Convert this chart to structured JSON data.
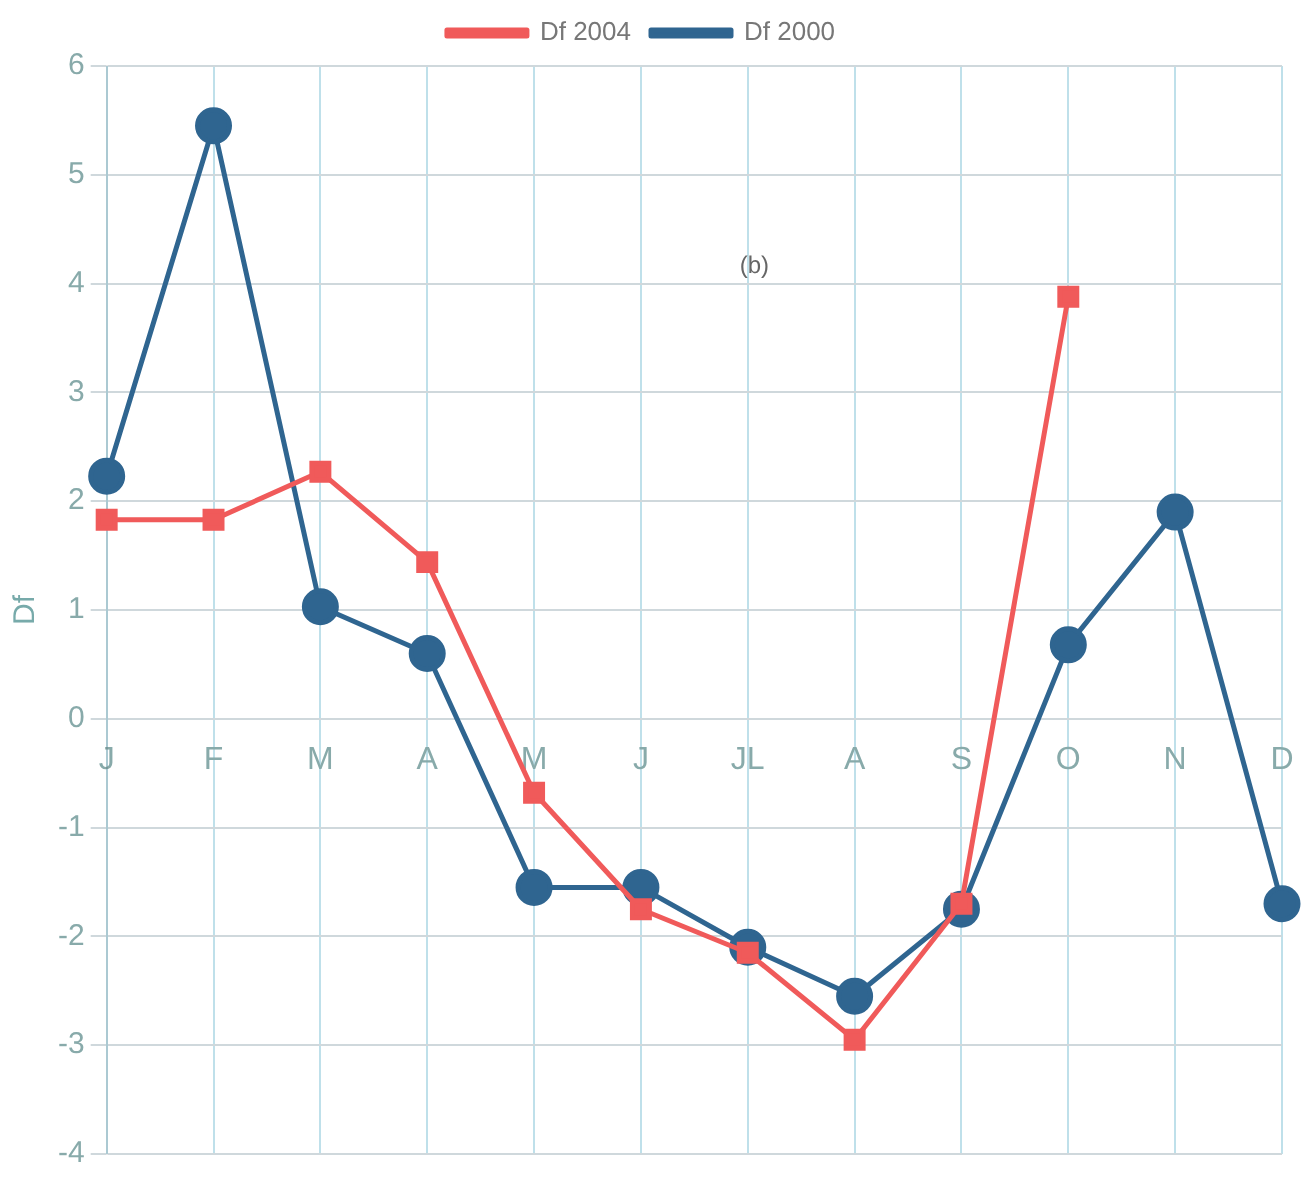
{
  "chart_data": {
    "type": "line",
    "ylabel": "Df",
    "annotations": [
      "(b)"
    ],
    "categories": [
      "J",
      "F",
      "M",
      "A",
      "M",
      "J",
      "JL",
      "A",
      "S",
      "O",
      "N",
      "D"
    ],
    "series": [
      {
        "name": "Df 2000",
        "color": "#2f6590",
        "values": [
          2.23,
          5.45,
          1.03,
          0.6,
          -1.55,
          -1.55,
          -2.1,
          -2.55,
          -1.75,
          0.68,
          1.9,
          -1.7
        ]
      },
      {
        "name": "Df 2004",
        "color": "#f05a5a",
        "marker": "square",
        "values": [
          1.83,
          1.83,
          2.27,
          1.44,
          -0.68,
          -1.75,
          -2.15,
          -2.95,
          -1.7,
          3.88,
          null,
          null
        ]
      }
    ],
    "marker": "circle",
    "ylim": [
      -4,
      6
    ],
    "yticks": [
      -4,
      -3,
      -2,
      -1,
      0,
      1,
      2,
      3,
      4,
      5,
      6
    ],
    "grid": true,
    "legend": "top"
  }
}
